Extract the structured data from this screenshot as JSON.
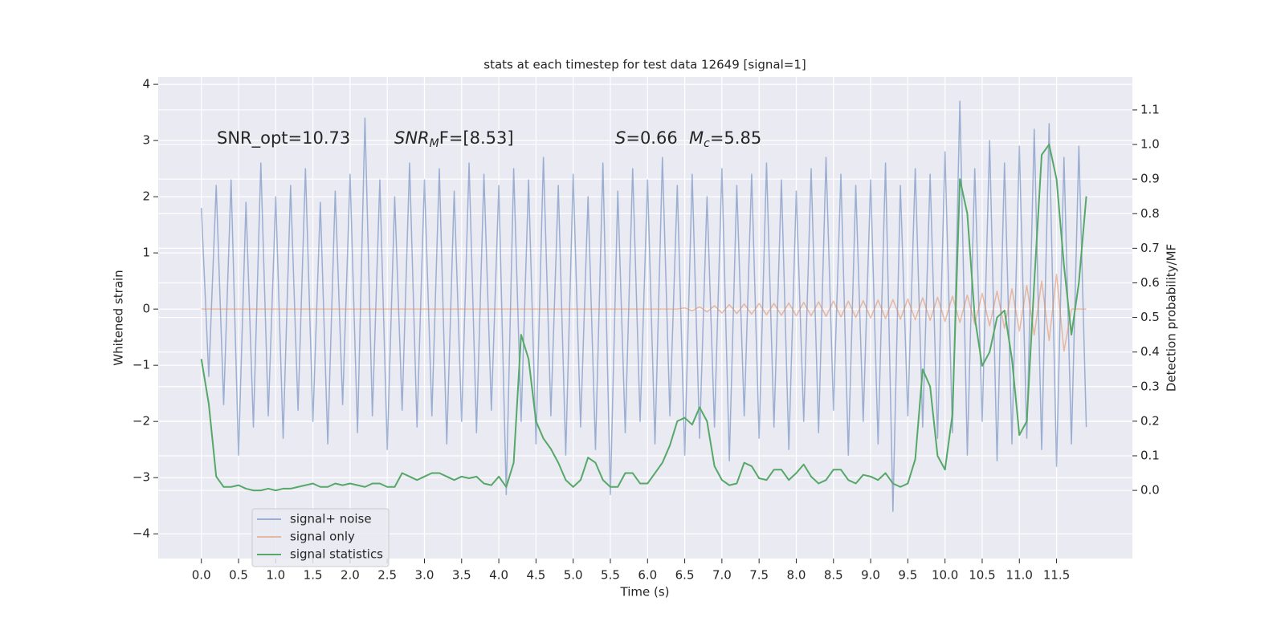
{
  "chart_data": {
    "type": "line",
    "title": "stats at each timestep for test data 12649 [signal=1]",
    "xlabel": "Time (s)",
    "ylabel": "Whitened strain",
    "y2label": "Detection probability/MF",
    "annotations": [
      {
        "text": "SNR_opt=10.73"
      },
      {
        "text": "SNR",
        "sub": "M",
        "rest": "F=[8.53]"
      },
      {
        "text": "S",
        "rest": "=0.66"
      },
      {
        "text": "M",
        "sub": "c",
        "rest": "=5.85"
      }
    ],
    "xlim": [
      -0.58,
      12.52
    ],
    "ylim": [
      -4.44,
      4.13
    ],
    "y2lim": [
      -0.197,
      1.195
    ],
    "xticks": [
      {
        "value": 0,
        "label": "0.0"
      },
      0.5,
      {
        "value": 1,
        "label": "1.0"
      },
      1.5,
      {
        "value": 2,
        "label": "2.0"
      },
      2.5,
      {
        "value": 3,
        "label": "3.0"
      },
      3.5,
      {
        "value": 4,
        "label": "4.0"
      },
      4.5,
      {
        "value": 5,
        "label": "5.0"
      },
      5.5,
      {
        "value": 6,
        "label": "6.0"
      },
      6.5,
      {
        "value": 7,
        "label": "7.0"
      },
      7.5,
      {
        "value": 8,
        "label": "8.0"
      },
      8.5,
      {
        "value": 9,
        "label": "9.0"
      },
      9.5,
      {
        "value": 10,
        "label": "10.0"
      },
      10.5,
      {
        "value": 11,
        "label": "11.0"
      },
      11.5
    ],
    "yticks": [
      {
        "value": -4,
        "label": "−4"
      },
      {
        "value": -3,
        "label": "−3"
      },
      {
        "value": -2,
        "label": "−2"
      },
      {
        "value": -1,
        "label": "−1"
      },
      0,
      1,
      2,
      3,
      4
    ],
    "y2ticks": [
      {
        "value": 0,
        "label": "0.0"
      },
      0.1,
      0.2,
      0.3,
      0.4,
      0.5,
      0.6,
      0.7,
      0.8,
      0.9,
      {
        "value": 1,
        "label": "1.0"
      },
      1.1
    ],
    "grid": true,
    "legend": "lower left",
    "x": [
      0,
      0.1,
      0.2,
      0.3,
      0.4,
      0.5,
      0.6,
      0.7,
      0.8,
      0.9,
      1,
      1.1,
      1.2,
      1.3,
      1.4,
      1.5,
      1.6,
      1.7,
      1.8,
      1.9,
      2,
      2.1,
      2.2,
      2.3,
      2.4,
      2.5,
      2.6,
      2.7,
      2.8,
      2.9,
      3,
      3.1,
      3.2,
      3.3,
      3.4,
      3.5,
      3.6,
      3.7,
      3.8,
      3.9,
      4,
      4.1,
      4.2,
      4.3,
      4.4,
      4.5,
      4.6,
      4.7,
      4.8,
      4.9,
      5,
      5.1,
      5.2,
      5.3,
      5.4,
      5.5,
      5.6,
      5.7,
      5.8,
      5.9,
      6,
      6.1,
      6.2,
      6.3,
      6.4,
      6.5,
      6.6,
      6.7,
      6.8,
      6.9,
      7,
      7.1,
      7.2,
      7.3,
      7.4,
      7.5,
      7.6,
      7.7,
      7.8,
      7.9,
      8,
      8.1,
      8.2,
      8.3,
      8.4,
      8.5,
      8.6,
      8.7,
      8.8,
      8.9,
      9,
      9.1,
      9.2,
      9.3,
      9.4,
      9.5,
      9.6,
      9.7,
      9.8,
      9.9,
      10,
      10.1,
      10.2,
      10.3,
      10.4,
      10.5,
      10.6,
      10.7,
      10.8,
      10.9,
      11,
      11.1,
      11.2,
      11.3,
      11.4,
      11.5,
      11.6,
      11.7,
      11.8,
      11.9
    ],
    "series": [
      {
        "name": "signal+ noise",
        "color": "#4c72b0",
        "alpha": 0.5,
        "axis": "y",
        "values": [
          1.8,
          -1.2,
          2.2,
          -1.7,
          2.3,
          -2.6,
          1.9,
          -2.1,
          2.6,
          -1.9,
          2.0,
          -2.3,
          2.2,
          -1.8,
          2.5,
          -2.0,
          1.9,
          -2.4,
          2.1,
          -1.7,
          2.4,
          -2.2,
          3.4,
          -1.9,
          2.3,
          -2.5,
          2.0,
          -1.8,
          2.6,
          -2.1,
          2.3,
          -1.9,
          2.5,
          -2.4,
          2.1,
          -2.0,
          2.6,
          -2.2,
          2.4,
          -1.8,
          2.2,
          -3.3,
          2.5,
          -2.0,
          2.3,
          -2.4,
          2.7,
          -1.9,
          2.2,
          -2.6,
          2.4,
          -2.1,
          2.0,
          -2.5,
          2.6,
          -3.3,
          2.1,
          -2.2,
          2.5,
          -2.0,
          2.3,
          -2.4,
          2.7,
          -1.9,
          2.2,
          -2.6,
          2.4,
          -2.3,
          2.0,
          -2.1,
          2.5,
          -2.7,
          2.2,
          -1.9,
          2.4,
          -2.3,
          2.6,
          -2.1,
          2.3,
          -2.5,
          2.1,
          -2.0,
          2.5,
          -2.2,
          2.7,
          -1.8,
          2.4,
          -2.6,
          2.2,
          -2.0,
          2.3,
          -2.4,
          2.6,
          -3.6,
          2.2,
          -1.9,
          2.5,
          -2.1,
          2.4,
          -2.3,
          2.8,
          -2.2,
          3.7,
          -2.6,
          2.5,
          -2.0,
          3.0,
          -2.7,
          2.6,
          -2.4,
          2.9,
          -2.3,
          3.2,
          -2.5,
          3.3,
          -2.8,
          2.7,
          -2.4,
          2.9,
          -2.1
        ]
      },
      {
        "name": "signal only",
        "color": "#dd8452",
        "alpha": 0.5,
        "axis": "y",
        "values": [
          0,
          0,
          0,
          0,
          0,
          0,
          0,
          0,
          0,
          0,
          0,
          0,
          0,
          0,
          0,
          0,
          0,
          0,
          0,
          0,
          0,
          0,
          0,
          0,
          0,
          0,
          0,
          0,
          0,
          0,
          0,
          0,
          0,
          0,
          0,
          0,
          0,
          0,
          0,
          0,
          0,
          0,
          0,
          0,
          0,
          0,
          0,
          0,
          0,
          0,
          0,
          0,
          0,
          0,
          0,
          0,
          0,
          0,
          0,
          0,
          0,
          0,
          0,
          0,
          0,
          0.02,
          -0.03,
          0.04,
          -0.05,
          0.06,
          -0.07,
          0.08,
          -0.08,
          0.09,
          -0.09,
          0.1,
          -0.1,
          0.1,
          -0.11,
          0.11,
          -0.12,
          0.12,
          -0.12,
          0.13,
          -0.13,
          0.14,
          -0.14,
          0.14,
          -0.15,
          0.15,
          -0.16,
          0.16,
          -0.17,
          0.17,
          -0.18,
          0.18,
          -0.19,
          0.2,
          -0.2,
          0.21,
          -0.22,
          0.23,
          -0.24,
          0.25,
          -0.27,
          0.28,
          -0.3,
          0.32,
          -0.34,
          0.36,
          -0.39,
          0.42,
          -0.46,
          0.5,
          -0.56,
          0.62,
          -0.75,
          0,
          0,
          0
        ]
      },
      {
        "name": "signal statistics",
        "color": "#55a868",
        "alpha": 1,
        "axis": "y2",
        "values": [
          0.38,
          0.25,
          0.04,
          0.01,
          0.01,
          0.015,
          0.005,
          0.0,
          0.0,
          0.005,
          0.0,
          0.005,
          0.005,
          0.01,
          0.015,
          0.02,
          0.01,
          0.01,
          0.02,
          0.015,
          0.02,
          0.015,
          0.01,
          0.02,
          0.02,
          0.01,
          0.01,
          0.05,
          0.04,
          0.03,
          0.04,
          0.05,
          0.05,
          0.04,
          0.03,
          0.04,
          0.035,
          0.04,
          0.02,
          0.015,
          0.04,
          0.01,
          0.08,
          0.45,
          0.38,
          0.2,
          0.15,
          0.12,
          0.08,
          0.03,
          0.01,
          0.03,
          0.095,
          0.08,
          0.03,
          0.01,
          0.01,
          0.05,
          0.05,
          0.02,
          0.02,
          0.05,
          0.08,
          0.13,
          0.2,
          0.21,
          0.19,
          0.24,
          0.2,
          0.07,
          0.03,
          0.015,
          0.02,
          0.08,
          0.07,
          0.035,
          0.03,
          0.06,
          0.06,
          0.03,
          0.05,
          0.075,
          0.04,
          0.02,
          0.03,
          0.06,
          0.06,
          0.03,
          0.02,
          0.045,
          0.04,
          0.03,
          0.05,
          0.02,
          0.01,
          0.02,
          0.09,
          0.35,
          0.3,
          0.1,
          0.06,
          0.22,
          0.9,
          0.8,
          0.5,
          0.36,
          0.4,
          0.5,
          0.52,
          0.38,
          0.16,
          0.2,
          0.6,
          0.97,
          1.0,
          0.9,
          0.65,
          0.45,
          0.6,
          0.85
        ]
      }
    ]
  }
}
